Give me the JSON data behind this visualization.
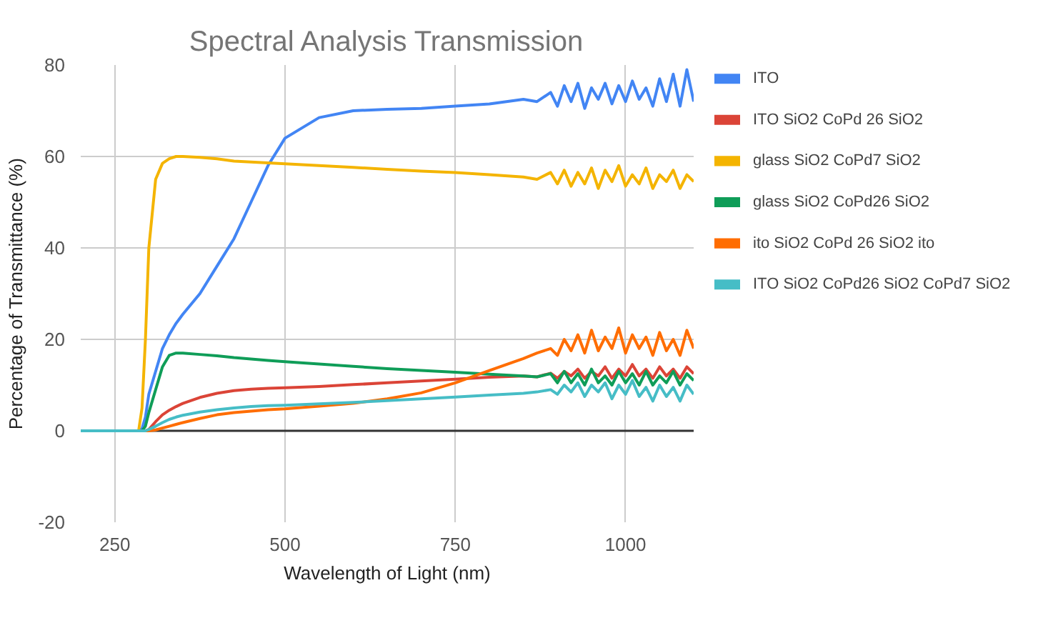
{
  "chart_data": {
    "type": "line",
    "title": "Spectral Analysis Transmission",
    "xlabel": "Wavelength of Light (nm)",
    "ylabel": "Percentage of Transmittance (%)",
    "x": [
      200,
      250,
      285,
      290,
      295,
      300,
      310,
      320,
      330,
      340,
      350,
      375,
      400,
      425,
      450,
      475,
      500,
      550,
      600,
      650,
      700,
      750,
      800,
      850,
      870,
      890,
      900,
      910,
      920,
      930,
      940,
      950,
      960,
      970,
      980,
      990,
      1000,
      1010,
      1020,
      1030,
      1040,
      1050,
      1060,
      1070,
      1080,
      1090,
      1100
    ],
    "series": [
      {
        "name": "ITO",
        "color": "#4285f4",
        "values": [
          0,
          0,
          0,
          0.5,
          3,
          8,
          13,
          18,
          21,
          23.5,
          25.5,
          30,
          36,
          42,
          50,
          58,
          64,
          68.5,
          70,
          70.3,
          70.5,
          71,
          71.5,
          72.5,
          72,
          74,
          71,
          75.5,
          72,
          76,
          70.5,
          75,
          72.5,
          76,
          71.5,
          75.5,
          72,
          76.5,
          72.5,
          75,
          71,
          77,
          72,
          78,
          71,
          79,
          72
        ]
      },
      {
        "name": "ITO SiO2 CoPd 26 SiO2",
        "color": "#db4437",
        "values": [
          null,
          null,
          null,
          0,
          0,
          0.3,
          2,
          3.5,
          4.5,
          5.3,
          6,
          7.3,
          8.2,
          8.8,
          9.1,
          9.3,
          9.4,
          9.7,
          10.1,
          10.5,
          10.9,
          11.3,
          11.7,
          12,
          11.8,
          12.6,
          11.5,
          13,
          12,
          13.5,
          11.5,
          13,
          12,
          14,
          11.5,
          13.5,
          12,
          14.5,
          12,
          13.5,
          11.5,
          14,
          12,
          13.5,
          11.5,
          14,
          12.5
        ]
      },
      {
        "name": "glass SiO2 CoPd7 SiO2",
        "color": "#f4b400",
        "values": [
          0,
          0,
          0,
          5,
          20,
          40,
          55,
          58.5,
          59.5,
          60,
          60,
          59.8,
          59.5,
          59,
          58.8,
          58.6,
          58.4,
          58,
          57.6,
          57.2,
          56.8,
          56.5,
          56,
          55.5,
          55,
          56.5,
          54,
          57,
          53.5,
          56.5,
          54,
          57.5,
          53,
          57,
          54.5,
          58,
          53.5,
          56,
          54,
          57.5,
          53,
          56,
          54.5,
          57,
          53,
          56,
          54.5
        ]
      },
      {
        "name": "glass SiO2 CoPd26  SiO2",
        "color": "#0f9d58",
        "values": [
          0,
          0,
          0,
          0,
          1,
          4,
          9,
          14,
          16.5,
          17,
          17,
          16.7,
          16.4,
          16,
          15.7,
          15.4,
          15.1,
          14.6,
          14.1,
          13.6,
          13.2,
          12.8,
          12.4,
          12,
          11.8,
          12.5,
          10.5,
          13,
          10.5,
          12.5,
          10,
          13.5,
          10.5,
          12,
          10,
          13,
          10.5,
          12.5,
          10,
          13,
          10,
          12,
          10.5,
          13,
          10,
          12.5,
          11
        ]
      },
      {
        "name": "ito SiO2 CoPd 26 SiO2 ito",
        "color": "#ff6d01",
        "values": [
          null,
          null,
          null,
          null,
          0,
          0,
          0.2,
          0.6,
          1,
          1.4,
          1.8,
          2.7,
          3.5,
          4,
          4.3,
          4.6,
          4.8,
          5.4,
          6,
          7,
          8.3,
          10.5,
          13.2,
          15.8,
          17,
          18,
          16.5,
          20,
          17.5,
          21,
          17,
          22,
          17.5,
          20.5,
          18,
          22.5,
          17,
          21,
          18,
          20.5,
          16.5,
          21.5,
          17.5,
          20,
          16.5,
          22,
          18
        ]
      },
      {
        "name": "ITO SiO2 CoPd26 SiO2 CoPd7 SiO2",
        "color": "#46bdc6",
        "values": [
          0,
          0,
          0,
          0,
          0,
          0.3,
          1,
          1.8,
          2.5,
          3,
          3.4,
          4.1,
          4.6,
          5,
          5.3,
          5.5,
          5.6,
          5.9,
          6.2,
          6.6,
          7,
          7.4,
          7.8,
          8.2,
          8.5,
          9,
          8,
          10,
          8.5,
          10.5,
          7.5,
          10,
          8.5,
          10.5,
          7,
          10,
          8,
          11,
          7.5,
          9.5,
          6.5,
          10,
          7.5,
          9.5,
          6.5,
          10,
          8
        ]
      }
    ],
    "xlim": [
      200,
      1100
    ],
    "xticks": [
      250,
      500,
      750,
      1000
    ],
    "ylim": [
      -20,
      80
    ],
    "yticks": [
      -20,
      0,
      20,
      40,
      60,
      80
    ],
    "ref_lines": [
      {
        "axis": "y",
        "value": 0,
        "color": "#333333"
      }
    ],
    "grid": true,
    "legend": "right",
    "marker": "none",
    "line_style": "solid"
  }
}
